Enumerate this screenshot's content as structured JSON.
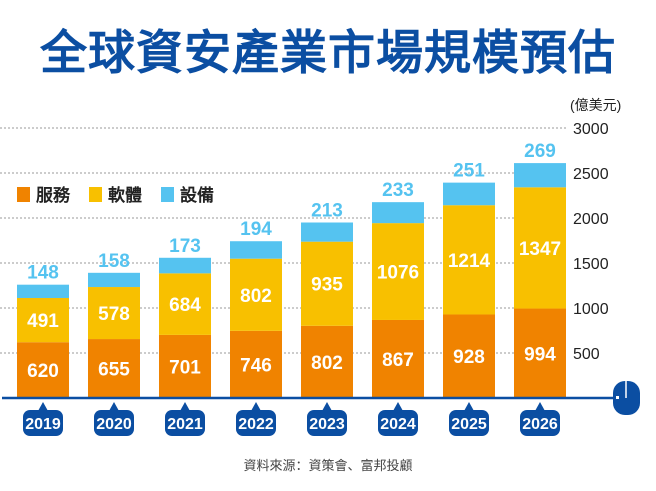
{
  "chart_data": {
    "type": "bar",
    "stacked": true,
    "title": "全球資安產業市場規模預估",
    "unit": "(億美元)",
    "categories": [
      "2019",
      "2020",
      "2021",
      "2022",
      "2023",
      "2024",
      "2025",
      "2026"
    ],
    "series": [
      {
        "name": "服務",
        "color": "#f08300",
        "values": [
          620,
          655,
          701,
          746,
          802,
          867,
          928,
          994
        ]
      },
      {
        "name": "軟體",
        "color": "#f8c000",
        "values": [
          491,
          578,
          684,
          802,
          935,
          1076,
          1214,
          1347
        ]
      },
      {
        "name": "設備",
        "color": "#55c3f0",
        "values": [
          148,
          158,
          173,
          194,
          213,
          233,
          251,
          269
        ]
      }
    ],
    "ylim": [
      0,
      3000
    ],
    "yticks": [
      500,
      1000,
      1500,
      2000,
      2500,
      3000
    ],
    "grid": true,
    "legend": "left",
    "source": "資料來源：資策會、富邦投顧",
    "axis_color": "#0b4ea2"
  }
}
